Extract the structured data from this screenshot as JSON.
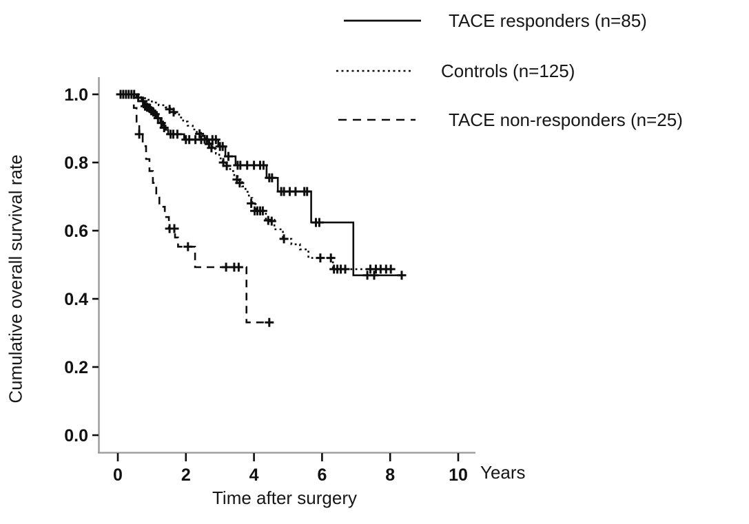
{
  "accent_colors": {
    "curve": "#0d0d0d",
    "axis_line": "#a0a0a0",
    "background": "#ffffff"
  },
  "chart_data": {
    "type": "line",
    "subtype": "kaplan-meier-step",
    "title": "",
    "xlabel": "Time after surgery",
    "x_unit_label": "Years",
    "ylabel": "Cumulative overall survival rate",
    "xlim": [
      0,
      10.5
    ],
    "ylim": [
      0.0,
      1.05
    ],
    "grid": false,
    "legend_position": "top-right",
    "x_ticks": [
      {
        "v": 0,
        "label": "0"
      },
      {
        "v": 2,
        "label": "2"
      },
      {
        "v": 4,
        "label": "4"
      },
      {
        "v": 6,
        "label": "6"
      },
      {
        "v": 8,
        "label": "8"
      },
      {
        "v": 10,
        "label": "10"
      }
    ],
    "y_ticks": [
      {
        "v": 1.0,
        "label": "1.0"
      },
      {
        "v": 0.8,
        "label": "0.8"
      },
      {
        "v": 0.6,
        "label": "0.6"
      },
      {
        "v": 0.4,
        "label": "0.4"
      },
      {
        "v": 0.2,
        "label": "0.2"
      },
      {
        "v": 0.0,
        "label": "0.0"
      }
    ],
    "series": [
      {
        "name": "TACE responders",
        "n": 85,
        "legend_label": "TACE responders (n=85)",
        "style": "solid",
        "points": [
          [
            0,
            1.0
          ],
          [
            0.55,
            0.99
          ],
          [
            0.7,
            0.98
          ],
          [
            0.82,
            0.97
          ],
          [
            0.95,
            0.958
          ],
          [
            1.05,
            0.944
          ],
          [
            1.15,
            0.93
          ],
          [
            1.25,
            0.92
          ],
          [
            1.33,
            0.908
          ],
          [
            1.4,
            0.896
          ],
          [
            1.48,
            0.883
          ],
          [
            1.95,
            0.867
          ],
          [
            2.95,
            0.847
          ],
          [
            3.16,
            0.818
          ],
          [
            3.46,
            0.792
          ],
          [
            4.37,
            0.755
          ],
          [
            4.7,
            0.715
          ],
          [
            5.68,
            0.624
          ],
          [
            6.92,
            0.469
          ],
          [
            8.42,
            0.469
          ]
        ],
        "censor_marks": [
          [
            0.08,
            1.0
          ],
          [
            0.16,
            1.0
          ],
          [
            0.24,
            1.0
          ],
          [
            0.32,
            1.0
          ],
          [
            0.4,
            1.0
          ],
          [
            0.48,
            1.0
          ],
          [
            0.6,
            0.99
          ],
          [
            0.74,
            0.98
          ],
          [
            0.8,
            0.965
          ],
          [
            0.86,
            0.962
          ],
          [
            0.92,
            0.96
          ],
          [
            0.98,
            0.952
          ],
          [
            1.04,
            0.948
          ],
          [
            1.1,
            0.942
          ],
          [
            1.18,
            0.93
          ],
          [
            1.28,
            0.916
          ],
          [
            1.36,
            0.902
          ],
          [
            1.55,
            0.883
          ],
          [
            1.63,
            0.883
          ],
          [
            1.75,
            0.883
          ],
          [
            2.0,
            0.867
          ],
          [
            2.1,
            0.867
          ],
          [
            2.28,
            0.867
          ],
          [
            2.45,
            0.867
          ],
          [
            2.62,
            0.867
          ],
          [
            2.78,
            0.867
          ],
          [
            2.88,
            0.867
          ],
          [
            3.0,
            0.847
          ],
          [
            3.08,
            0.847
          ],
          [
            3.25,
            0.818
          ],
          [
            3.52,
            0.792
          ],
          [
            3.6,
            0.792
          ],
          [
            3.8,
            0.792
          ],
          [
            4.0,
            0.792
          ],
          [
            4.18,
            0.792
          ],
          [
            4.28,
            0.792
          ],
          [
            4.45,
            0.755
          ],
          [
            4.53,
            0.755
          ],
          [
            4.8,
            0.715
          ],
          [
            4.88,
            0.715
          ],
          [
            5.05,
            0.715
          ],
          [
            5.22,
            0.715
          ],
          [
            5.48,
            0.715
          ],
          [
            5.56,
            0.715
          ],
          [
            5.82,
            0.624
          ],
          [
            5.92,
            0.624
          ],
          [
            7.33,
            0.469
          ],
          [
            7.53,
            0.469
          ],
          [
            8.34,
            0.469
          ]
        ]
      },
      {
        "name": "Controls",
        "n": 125,
        "legend_label": "Controls (n=125)",
        "style": "dotted",
        "points": [
          [
            0,
            1.0
          ],
          [
            0.62,
            0.992
          ],
          [
            0.8,
            0.984
          ],
          [
            1.0,
            0.976
          ],
          [
            1.2,
            0.968
          ],
          [
            1.4,
            0.962
          ],
          [
            1.54,
            0.955
          ],
          [
            1.68,
            0.944
          ],
          [
            1.8,
            0.932
          ],
          [
            1.92,
            0.92
          ],
          [
            2.05,
            0.908
          ],
          [
            2.2,
            0.897
          ],
          [
            2.32,
            0.887
          ],
          [
            2.5,
            0.871
          ],
          [
            2.65,
            0.856
          ],
          [
            2.78,
            0.84
          ],
          [
            2.88,
            0.826
          ],
          [
            2.98,
            0.812
          ],
          [
            3.08,
            0.8
          ],
          [
            3.18,
            0.79
          ],
          [
            3.3,
            0.775
          ],
          [
            3.42,
            0.76
          ],
          [
            3.52,
            0.748
          ],
          [
            3.65,
            0.73
          ],
          [
            3.75,
            0.714
          ],
          [
            3.85,
            0.696
          ],
          [
            3.95,
            0.678
          ],
          [
            4.05,
            0.658
          ],
          [
            4.35,
            0.632
          ],
          [
            4.6,
            0.604
          ],
          [
            4.85,
            0.576
          ],
          [
            5.1,
            0.56
          ],
          [
            5.35,
            0.545
          ],
          [
            5.6,
            0.52
          ],
          [
            6.32,
            0.487
          ],
          [
            8.06,
            0.487
          ]
        ],
        "censor_marks": [
          [
            1.52,
            0.956
          ],
          [
            1.64,
            0.948
          ],
          [
            2.4,
            0.884
          ],
          [
            2.55,
            0.868
          ],
          [
            2.68,
            0.854
          ],
          [
            2.75,
            0.843
          ],
          [
            3.1,
            0.8
          ],
          [
            3.2,
            0.79
          ],
          [
            3.5,
            0.75
          ],
          [
            3.58,
            0.74
          ],
          [
            3.92,
            0.68
          ],
          [
            4.02,
            0.658
          ],
          [
            4.1,
            0.658
          ],
          [
            4.18,
            0.658
          ],
          [
            4.26,
            0.658
          ],
          [
            4.42,
            0.63
          ],
          [
            4.52,
            0.628
          ],
          [
            4.88,
            0.576
          ],
          [
            5.95,
            0.52
          ],
          [
            6.26,
            0.52
          ],
          [
            6.35,
            0.487
          ],
          [
            6.45,
            0.487
          ],
          [
            6.55,
            0.487
          ],
          [
            6.68,
            0.487
          ],
          [
            7.42,
            0.487
          ],
          [
            7.58,
            0.487
          ],
          [
            7.72,
            0.487
          ],
          [
            7.88,
            0.487
          ],
          [
            8.02,
            0.487
          ]
        ]
      },
      {
        "name": "TACE non-responders",
        "n": 25,
        "legend_label": "TACE non-responders (n=25)",
        "style": "dashed",
        "points": [
          [
            0,
            1.0
          ],
          [
            0.47,
            0.96
          ],
          [
            0.55,
            0.92
          ],
          [
            0.63,
            0.883
          ],
          [
            0.73,
            0.848
          ],
          [
            0.83,
            0.81
          ],
          [
            0.93,
            0.775
          ],
          [
            1.03,
            0.74
          ],
          [
            1.13,
            0.7
          ],
          [
            1.22,
            0.67
          ],
          [
            1.38,
            0.64
          ],
          [
            1.5,
            0.606
          ],
          [
            1.68,
            0.58
          ],
          [
            1.77,
            0.553
          ],
          [
            2.27,
            0.493
          ],
          [
            3.78,
            0.331
          ],
          [
            4.55,
            0.331
          ]
        ],
        "censor_marks": [
          [
            0.63,
            0.883
          ],
          [
            1.52,
            0.606
          ],
          [
            1.66,
            0.606
          ],
          [
            2.06,
            0.553
          ],
          [
            3.18,
            0.493
          ],
          [
            3.42,
            0.493
          ],
          [
            3.55,
            0.493
          ],
          [
            4.45,
            0.331
          ]
        ]
      }
    ]
  }
}
